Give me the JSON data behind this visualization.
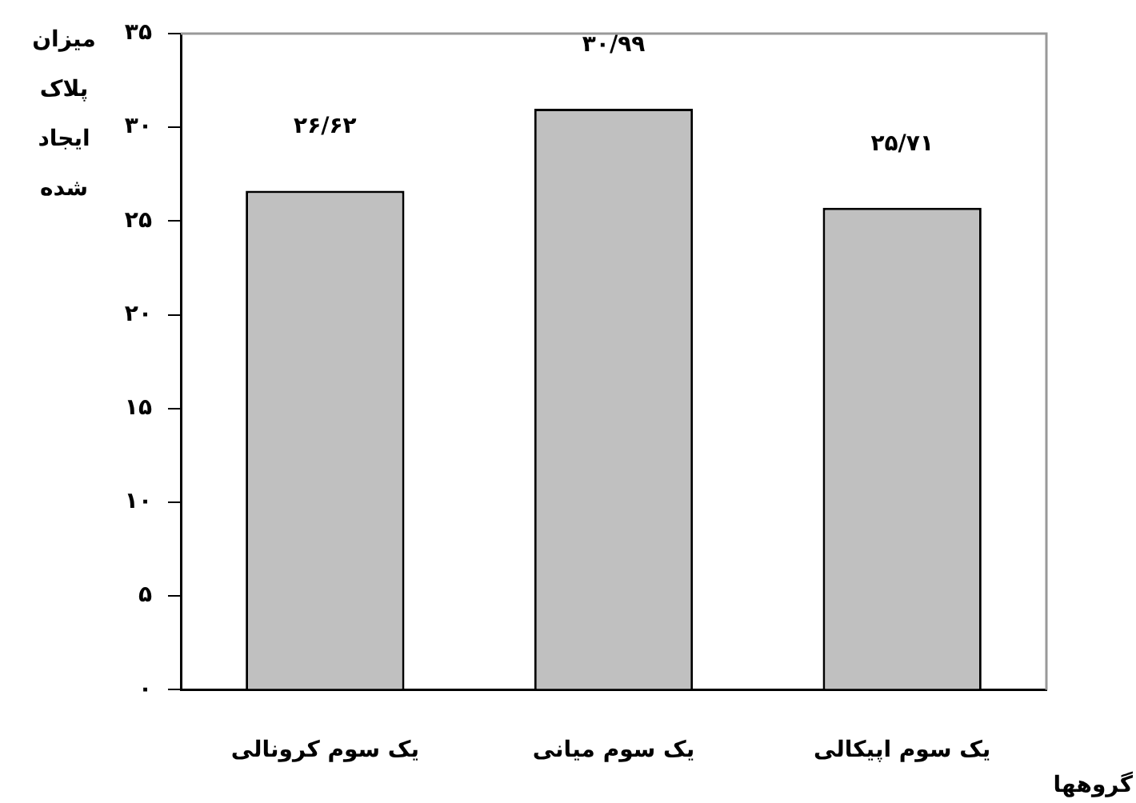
{
  "chart_data": {
    "type": "bar",
    "categories": [
      "یک سوم کرونالی",
      "یک سوم میانی",
      "یک سوم اپیکالی"
    ],
    "values": [
      26.62,
      30.99,
      25.71
    ],
    "value_labels": [
      "۲۶/۶۲",
      "۳۰/۹۹",
      "۲۵/۷۱"
    ],
    "color": "#c0c0c0",
    "xlabel": "گروهها",
    "ylabel": "میزان پلاک ایجاد شده",
    "ylim": [
      0,
      35
    ],
    "yticks": [
      {
        "value": 0,
        "label": "۰"
      },
      {
        "value": 5,
        "label": "۵"
      },
      {
        "value": 10,
        "label": "۱۰"
      },
      {
        "value": 15,
        "label": "۱۵"
      },
      {
        "value": 20,
        "label": "۲۰"
      },
      {
        "value": 25,
        "label": "۲۵"
      },
      {
        "value": 30,
        "label": "۳۰"
      },
      {
        "value": 35,
        "label": "۳۵"
      }
    ],
    "grid": false,
    "legend": false
  }
}
